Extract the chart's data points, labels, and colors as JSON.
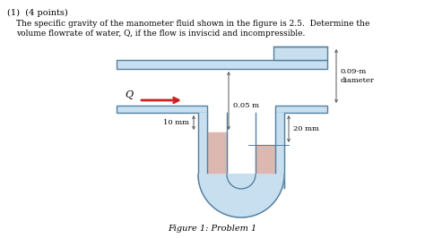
{
  "title_text": "(1)  (4 points)",
  "body_text1": "The specific gravity of the manometer fluid shown in the figure is 2.5.  Determine the",
  "body_text2": "volume flowrate of water, Q, if the flow is inviscid and incompressible.",
  "figure_caption": "Figure 1: Problem 1",
  "label_Q": "Q",
  "label_005m": "0.05 m",
  "label_009m": "0.09-m\ndiameter",
  "label_10mm": "10 mm",
  "label_20mm": "20 mm",
  "bg_color": "#ffffff",
  "pipe_fill": "#c8dff0",
  "pipe_edge": "#5580a0",
  "fluid_color": "#ddb8b0",
  "arrow_color": "#cc2222",
  "dim_color": "#555555",
  "text_color": "#000000",
  "fig_width": 4.74,
  "fig_height": 2.66,
  "dpi": 100
}
